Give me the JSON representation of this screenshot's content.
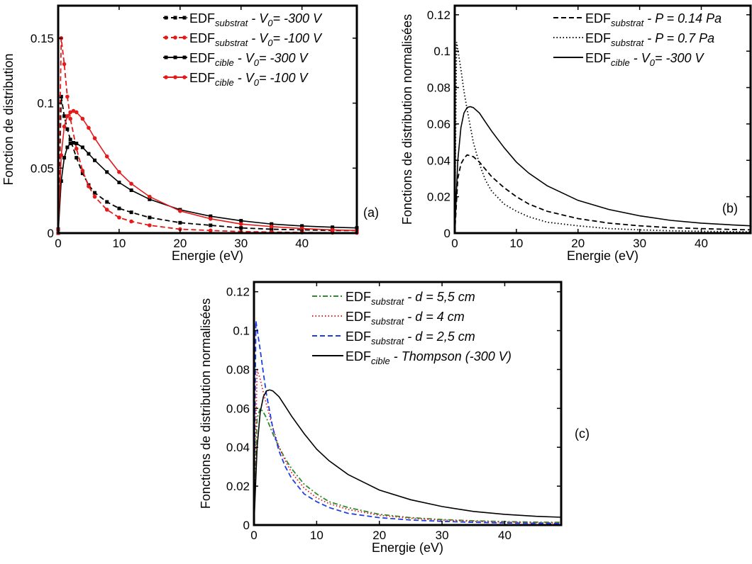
{
  "chart_data": [
    {
      "type": "line",
      "panel_label": "(a)",
      "xlabel": "Energie (eV)",
      "ylabel": "Fonction de distribution",
      "xlim": [
        0,
        49
      ],
      "ylim": [
        0,
        0.175
      ],
      "xticks": [
        0,
        10,
        20,
        30,
        40
      ],
      "yticks": [
        0,
        0.05,
        0.1,
        0.15
      ],
      "ytick_labels": [
        "0",
        "0.05",
        "0.1",
        "0.15"
      ],
      "legend_position": "top-right",
      "series": [
        {
          "name": "EDFsubstrat - V0= -300 V",
          "legend": {
            "base": "EDF",
            "sub": "substrat",
            "mid": " - V",
            "sub2": "0",
            "tail": "= -300 V"
          },
          "color": "#000000",
          "style": "dash",
          "marker": "square",
          "x": [
            0,
            0.5,
            1,
            1.5,
            2,
            3,
            4,
            5,
            6,
            8,
            10,
            12,
            15,
            20,
            25,
            30,
            35,
            40,
            45,
            49
          ],
          "y": [
            0.003,
            0.105,
            0.09,
            0.08,
            0.072,
            0.058,
            0.046,
            0.037,
            0.031,
            0.024,
            0.019,
            0.016,
            0.012,
            0.008,
            0.006,
            0.004,
            0.003,
            0.0025,
            0.002,
            0.002
          ]
        },
        {
          "name": "EDFsubstrat - V0= -100 V",
          "legend": {
            "base": "EDF",
            "sub": "substrat",
            "mid": " - V",
            "sub2": "0",
            "tail": "= -100 V"
          },
          "color": "#e41a1a",
          "style": "dash",
          "marker": "circle",
          "x": [
            0,
            0.5,
            1,
            1.5,
            2,
            3,
            4,
            5,
            6,
            8,
            10,
            12,
            15,
            20,
            25,
            30,
            35,
            40,
            45,
            49
          ],
          "y": [
            0.003,
            0.15,
            0.13,
            0.105,
            0.088,
            0.065,
            0.048,
            0.036,
            0.028,
            0.018,
            0.012,
            0.009,
            0.006,
            0.003,
            0.002,
            0.0012,
            0.0008,
            0.0005,
            0.0003,
            0.0002
          ]
        },
        {
          "name": "EDFcible - V0= -300 V",
          "legend": {
            "base": "EDF",
            "sub": "cible",
            "mid": " - V",
            "sub2": "0",
            "tail": "= -300 V"
          },
          "color": "#000000",
          "style": "solid",
          "marker": "square",
          "x": [
            0,
            0.5,
            1,
            1.5,
            2,
            2.5,
            3,
            4,
            5,
            6,
            8,
            10,
            12,
            15,
            20,
            25,
            30,
            35,
            40,
            45,
            49
          ],
          "y": [
            0,
            0.04,
            0.058,
            0.066,
            0.069,
            0.0695,
            0.069,
            0.066,
            0.061,
            0.056,
            0.047,
            0.039,
            0.033,
            0.026,
            0.018,
            0.013,
            0.0095,
            0.007,
            0.0055,
            0.0045,
            0.004
          ]
        },
        {
          "name": "EDFcible - V0= -100 V",
          "legend": {
            "base": "EDF",
            "sub": "cible",
            "mid": " - V",
            "sub2": "0",
            "tail": "= -100 V"
          },
          "color": "#e41a1a",
          "style": "solid",
          "marker": "circle",
          "x": [
            0,
            0.5,
            1,
            1.5,
            2,
            2.5,
            3,
            4,
            5,
            6,
            8,
            10,
            12,
            15,
            20,
            25,
            30,
            35,
            40,
            45,
            49
          ],
          "y": [
            0,
            0.06,
            0.082,
            0.09,
            0.093,
            0.094,
            0.093,
            0.088,
            0.081,
            0.073,
            0.059,
            0.047,
            0.038,
            0.028,
            0.017,
            0.011,
            0.007,
            0.005,
            0.0035,
            0.0025,
            0.002
          ]
        }
      ]
    },
    {
      "type": "line",
      "panel_label": "(b)",
      "xlabel": "Energie (eV)",
      "ylabel": "Fonctions de distribution normalisées",
      "xlim": [
        0,
        48
      ],
      "ylim": [
        0,
        0.125
      ],
      "xticks": [
        0,
        10,
        20,
        30,
        40
      ],
      "yticks": [
        0,
        0.02,
        0.04,
        0.06,
        0.08,
        0.1,
        0.12
      ],
      "ytick_labels": [
        "0",
        "0.02",
        "0.04",
        "0.06",
        "0.08",
        "0.1",
        "0.12"
      ],
      "legend_position": "top-right",
      "series": [
        {
          "name": "EDFsubstrat - P = 0.14 Pa",
          "legend": {
            "base": "EDF",
            "sub": "substrat",
            "mid": " - P = 0.14 Pa",
            "sub2": "",
            "tail": ""
          },
          "color": "#000000",
          "style": "dash",
          "x": [
            0,
            0.5,
            1,
            1.5,
            2,
            3,
            4,
            5,
            6,
            8,
            10,
            12,
            15,
            20,
            25,
            30,
            35,
            40,
            45,
            48
          ],
          "y": [
            0,
            0.03,
            0.038,
            0.041,
            0.043,
            0.042,
            0.039,
            0.035,
            0.031,
            0.025,
            0.02,
            0.016,
            0.012,
            0.008,
            0.0055,
            0.004,
            0.003,
            0.0025,
            0.002,
            0.0018
          ]
        },
        {
          "name": "EDFsubstrat - P = 0.7 Pa",
          "legend": {
            "base": "EDF",
            "sub": "substrat",
            "mid": " - P = 0.7 Pa",
            "sub2": "",
            "tail": ""
          },
          "color": "#000000",
          "style": "dot",
          "x": [
            0,
            0.3,
            1,
            1.5,
            2,
            3,
            4,
            5,
            6,
            8,
            10,
            12,
            15,
            20,
            25,
            30,
            35,
            40,
            45,
            48
          ],
          "y": [
            0.005,
            0.105,
            0.09,
            0.078,
            0.068,
            0.05,
            0.038,
            0.029,
            0.023,
            0.016,
            0.012,
            0.009,
            0.006,
            0.004,
            0.0025,
            0.0018,
            0.0013,
            0.001,
            0.0008,
            0.0007
          ]
        },
        {
          "name": "EDFcible - V0= -300 V",
          "legend": {
            "base": "EDF",
            "sub": "cible",
            "mid": " - V",
            "sub2": "0",
            "tail": "= -300 V"
          },
          "color": "#000000",
          "style": "solid",
          "x": [
            0,
            0.5,
            1,
            1.5,
            2,
            2.5,
            3,
            4,
            5,
            6,
            8,
            10,
            12,
            15,
            20,
            25,
            30,
            35,
            40,
            45,
            48
          ],
          "y": [
            0,
            0.04,
            0.058,
            0.066,
            0.069,
            0.0695,
            0.069,
            0.066,
            0.061,
            0.056,
            0.047,
            0.039,
            0.033,
            0.026,
            0.018,
            0.013,
            0.0095,
            0.007,
            0.0055,
            0.0045,
            0.004
          ]
        }
      ]
    },
    {
      "type": "line",
      "panel_label": "(c)",
      "xlabel": "Energie (eV)",
      "ylabel": "Fonctions de distribution normalisées",
      "xlim": [
        0,
        49
      ],
      "ylim": [
        0,
        0.125
      ],
      "xticks": [
        0,
        10,
        20,
        30,
        40
      ],
      "yticks": [
        0,
        0.02,
        0.04,
        0.06,
        0.08,
        0.1,
        0.12
      ],
      "ytick_labels": [
        "0",
        "0.02",
        "0.04",
        "0.06",
        "0.08",
        "0.1",
        "0.12"
      ],
      "legend_position": "top-right",
      "series": [
        {
          "name": "EDFsubstrat - d = 5,5 cm",
          "legend": {
            "base": "EDF",
            "sub": "substrat",
            "mid": " - d = 5,5 cm",
            "sub2": "",
            "tail": ""
          },
          "color": "#2e8b2e",
          "style": "dashdot",
          "x": [
            0,
            0.5,
            1,
            1.5,
            2,
            3,
            4,
            5,
            6,
            8,
            10,
            12,
            15,
            20,
            25,
            30,
            35,
            40,
            45,
            49
          ],
          "y": [
            0.003,
            0.055,
            0.06,
            0.058,
            0.055,
            0.047,
            0.04,
            0.034,
            0.029,
            0.021,
            0.016,
            0.012,
            0.009,
            0.0055,
            0.0038,
            0.0028,
            0.0022,
            0.0018,
            0.0015,
            0.0014
          ]
        },
        {
          "name": "EDFsubstrat - d = 4 cm",
          "legend": {
            "base": "EDF",
            "sub": "substrat",
            "mid": " - d = 4 cm",
            "sub2": "",
            "tail": ""
          },
          "color": "#e41a1a",
          "style": "dot",
          "x": [
            0,
            0.5,
            1,
            1.5,
            2,
            3,
            4,
            5,
            6,
            8,
            10,
            12,
            15,
            20,
            25,
            30,
            35,
            40,
            45,
            49
          ],
          "y": [
            0.003,
            0.08,
            0.075,
            0.068,
            0.062,
            0.05,
            0.04,
            0.033,
            0.027,
            0.019,
            0.014,
            0.011,
            0.008,
            0.005,
            0.0035,
            0.0025,
            0.0019,
            0.0015,
            0.0012,
            0.0011
          ]
        },
        {
          "name": "EDFsubstrat - d = 2,5 cm",
          "legend": {
            "base": "EDF",
            "sub": "substrat",
            "mid": " - d = 2,5 cm",
            "sub2": "",
            "tail": ""
          },
          "color": "#1f3fe6",
          "style": "dash",
          "x": [
            0,
            0.3,
            1,
            1.5,
            2,
            3,
            4,
            5,
            6,
            8,
            10,
            12,
            15,
            20,
            25,
            30,
            35,
            40,
            45,
            49
          ],
          "y": [
            0.005,
            0.105,
            0.09,
            0.078,
            0.067,
            0.05,
            0.038,
            0.03,
            0.024,
            0.016,
            0.012,
            0.009,
            0.006,
            0.0038,
            0.0026,
            0.0019,
            0.0014,
            0.0011,
            0.0009,
            0.0008
          ]
        },
        {
          "name": "EDFcible - Thompson (-300 V)",
          "legend": {
            "base": "EDF",
            "sub": "cible",
            "mid": " - Thompson (-300 V)",
            "sub2": "",
            "tail": ""
          },
          "color": "#000000",
          "style": "solid",
          "x": [
            0,
            0.5,
            1,
            1.5,
            2,
            2.5,
            3,
            4,
            5,
            6,
            8,
            10,
            12,
            15,
            20,
            25,
            30,
            35,
            40,
            45,
            49
          ],
          "y": [
            0,
            0.04,
            0.058,
            0.066,
            0.069,
            0.0695,
            0.069,
            0.066,
            0.061,
            0.056,
            0.047,
            0.039,
            0.033,
            0.026,
            0.018,
            0.013,
            0.0095,
            0.007,
            0.0055,
            0.0045,
            0.004
          ]
        }
      ]
    }
  ]
}
